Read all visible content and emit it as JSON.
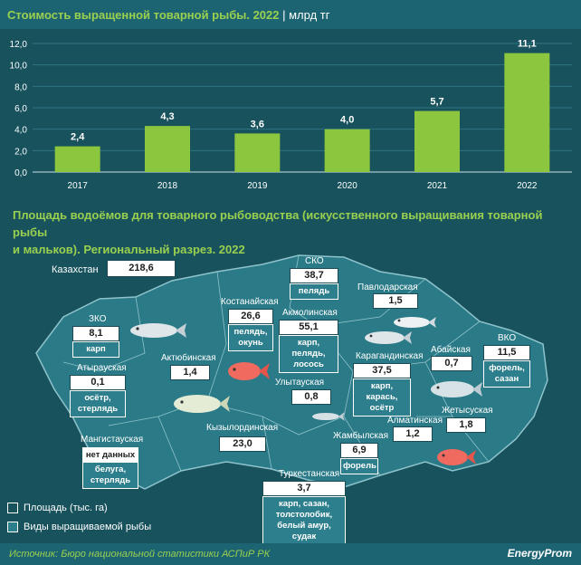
{
  "header": {
    "title": "Стоимость выращенной товарной рыбы. 2022",
    "unit": "| млрд тг"
  },
  "chart_data": {
    "type": "bar",
    "categories": [
      "2017",
      "2018",
      "2019",
      "2020",
      "2021",
      "2022"
    ],
    "values": [
      2.4,
      4.3,
      3.6,
      4.0,
      5.7,
      11.1
    ],
    "value_labels": [
      "2,4",
      "4,3",
      "3,6",
      "4,0",
      "5,7",
      "11,1"
    ],
    "yticks": [
      "0,0",
      "2,0",
      "4,0",
      "6,0",
      "8,0",
      "10,0",
      "12,0"
    ],
    "ylim": [
      0,
      12
    ],
    "grid": true,
    "bar_color": "#8cc63f"
  },
  "section2": {
    "title_line1": "Площадь водоёмов для товарного рыбоводства (искусственного выращивания товарной рыбы",
    "title_line2": "и мальков). Региональный разрез. 2022"
  },
  "kazakhstan": {
    "name": "Казахстан",
    "area": "218,6"
  },
  "regions": [
    {
      "key": "sko",
      "name": "СКО",
      "area": "38,7",
      "fish": [
        "пелядь"
      ]
    },
    {
      "key": "pavlodar",
      "name": "Павлодарская",
      "area": "1,5",
      "fish": []
    },
    {
      "key": "kostanay",
      "name": "Костанайская",
      "area": "26,6",
      "fish": [
        "пелядь,",
        "окунь"
      ]
    },
    {
      "key": "akmola",
      "name": "Акмолинская",
      "area": "55,1",
      "fish": [
        "карп, пелядь,",
        "лосось"
      ]
    },
    {
      "key": "zko",
      "name": "ЗКО",
      "area": "8,1",
      "fish": [
        "карп"
      ]
    },
    {
      "key": "atyrau",
      "name": "Атырауская",
      "area": "0,1",
      "fish": [
        "осётр,",
        "стерлядь"
      ]
    },
    {
      "key": "aktobe",
      "name": "Актюбинская",
      "area": "1,4",
      "fish": []
    },
    {
      "key": "karaganda",
      "name": "Карагандинская",
      "area": "37,5",
      "fish": [
        "карп, карась,",
        "осётр"
      ]
    },
    {
      "key": "abay",
      "name": "Абайская",
      "area": "0,7",
      "fish": []
    },
    {
      "key": "vko",
      "name": "ВКО",
      "area": "11,5",
      "fish": [
        "форель,",
        "сазан"
      ]
    },
    {
      "key": "ulytau",
      "name": "Улытауская",
      "area": "0,8",
      "fish": []
    },
    {
      "key": "mangystau",
      "name": "Мангистауская",
      "area": "",
      "fish": [
        "нет данных",
        "белуга,",
        "стерлядь"
      ]
    },
    {
      "key": "kyzylorda",
      "name": "Кызылординская",
      "area": "23,0",
      "fish": []
    },
    {
      "key": "almaty",
      "name": "Алматинская",
      "area": "1,2",
      "fish": []
    },
    {
      "key": "zhetisu",
      "name": "Жетысуская",
      "area": "1,8",
      "fish": []
    },
    {
      "key": "zhambyl",
      "name": "Жамбылская",
      "area": "6,9",
      "fish": [
        "форель"
      ]
    },
    {
      "key": "turkestan",
      "name": "Туркестанская",
      "area": "3,7",
      "fish": [
        "карп, сазан,",
        "толстолобик,",
        "белый амур, судак"
      ]
    }
  ],
  "legend": {
    "area": "Площадь (тыс. га)",
    "fish": "Виды выращиваемой рыбы"
  },
  "footer": {
    "source": "Источник: Бюро национальной статистики АСПиР РК",
    "brand": "EnergyProm"
  }
}
